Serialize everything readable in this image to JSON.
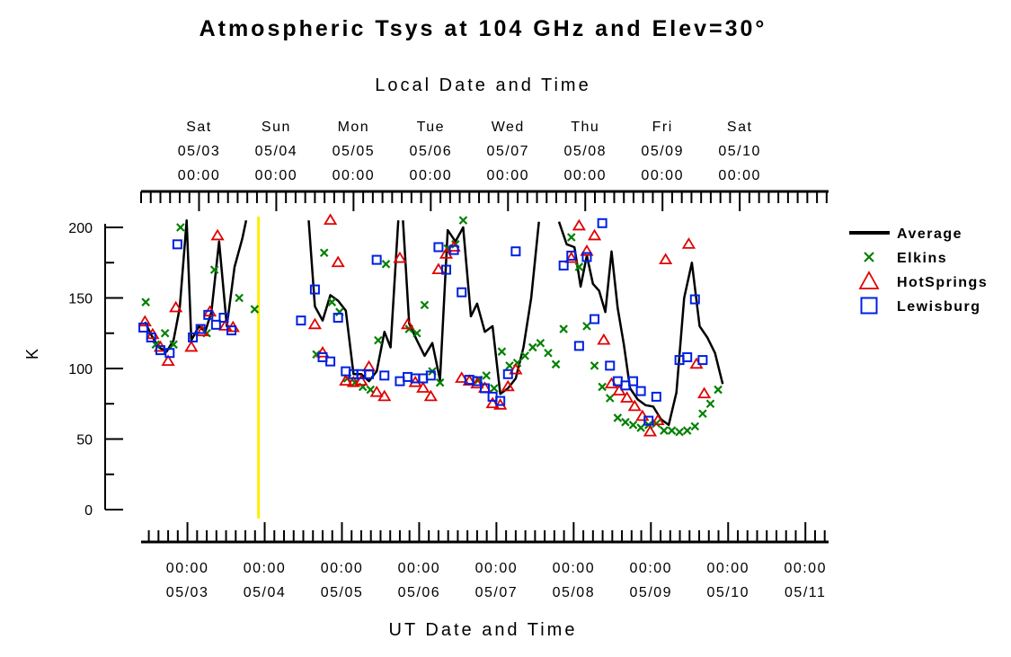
{
  "chart_data": {
    "type": "scatter",
    "title": "Atmospheric Tsys at 104 GHz and Elev=30°",
    "xlabel_top": "Local Date and Time",
    "xlabel_bottom": "UT Date and Time",
    "ylabel": "K",
    "ylim": [
      0,
      200
    ],
    "yticks": [
      0,
      50,
      100,
      150,
      200
    ],
    "xlim": [
      -0.75,
      8.15
    ],
    "top_axis_ticks": [
      {
        "x": 0.0,
        "l1": "Sat",
        "l2": "05/03",
        "l3": "00:00"
      },
      {
        "x": 1.0,
        "l1": "Sun",
        "l2": "05/04",
        "l3": "00:00"
      },
      {
        "x": 2.0,
        "l1": "Mon",
        "l2": "05/05",
        "l3": "00:00"
      },
      {
        "x": 3.0,
        "l1": "Tue",
        "l2": "05/06",
        "l3": "00:00"
      },
      {
        "x": 4.0,
        "l1": "Wed",
        "l2": "05/07",
        "l3": "00:00"
      },
      {
        "x": 5.0,
        "l1": "Thu",
        "l2": "05/08",
        "l3": "00:00"
      },
      {
        "x": 6.0,
        "l1": "Fri",
        "l2": "05/09",
        "l3": "00:00"
      },
      {
        "x": 7.0,
        "l1": "Sat",
        "l2": "05/10",
        "l3": "00:00"
      }
    ],
    "bottom_axis_ticks": [
      {
        "x": -0.15,
        "l1": "00:00",
        "l2": "05/03"
      },
      {
        "x": 0.85,
        "l1": "00:00",
        "l2": "05/04"
      },
      {
        "x": 1.85,
        "l1": "00:00",
        "l2": "05/05"
      },
      {
        "x": 2.85,
        "l1": "00:00",
        "l2": "05/06"
      },
      {
        "x": 3.85,
        "l1": "00:00",
        "l2": "05/07"
      },
      {
        "x": 4.85,
        "l1": "00:00",
        "l2": "05/08"
      },
      {
        "x": 5.85,
        "l1": "00:00",
        "l2": "05/09"
      },
      {
        "x": 6.85,
        "l1": "00:00",
        "l2": "05/10"
      },
      {
        "x": 7.85,
        "l1": "00:00",
        "l2": "05/11"
      }
    ],
    "marker_line": {
      "x": 0.77,
      "color": "#ffee00"
    },
    "legend_position": "right",
    "series": [
      {
        "name": "Average",
        "style": "line",
        "color": "#000000",
        "segments": [
          [
            [
              -0.7,
              133
            ],
            [
              -0.61,
              123
            ],
            [
              -0.52,
              115
            ],
            [
              -0.42,
              112
            ],
            [
              -0.33,
              120
            ],
            [
              -0.25,
              143
            ],
            [
              -0.16,
              205
            ],
            [
              -0.1,
              120
            ],
            [
              0.0,
              130
            ],
            [
              0.08,
              126
            ],
            [
              0.16,
              140
            ],
            [
              0.26,
              190
            ],
            [
              0.36,
              130
            ],
            [
              0.46,
              172
            ],
            [
              0.56,
              192
            ],
            [
              0.61,
              205
            ]
          ],
          [
            [
              1.42,
              205
            ],
            [
              1.5,
              144
            ],
            [
              1.6,
              134
            ],
            [
              1.7,
              152
            ],
            [
              1.8,
              148
            ],
            [
              1.9,
              141
            ],
            [
              2.0,
              96
            ],
            [
              2.1,
              96
            ],
            [
              2.2,
              91
            ],
            [
              2.3,
              98
            ],
            [
              2.4,
              126
            ],
            [
              2.48,
              115
            ],
            [
              2.58,
              205
            ]
          ],
          [
            [
              2.64,
              205
            ],
            [
              2.72,
              132
            ],
            [
              2.82,
              120
            ],
            [
              2.92,
              109
            ],
            [
              3.02,
              118
            ],
            [
              3.12,
              92
            ],
            [
              3.22,
              198
            ],
            [
              3.32,
              190
            ],
            [
              3.42,
              200
            ],
            [
              3.52,
              137
            ],
            [
              3.6,
              146
            ],
            [
              3.7,
              126
            ],
            [
              3.8,
              130
            ],
            [
              3.9,
              82
            ],
            [
              4.0,
              86
            ],
            [
              4.1,
              93
            ],
            [
              4.2,
              115
            ],
            [
              4.3,
              150
            ],
            [
              4.4,
              204
            ]
          ],
          [
            [
              4.66,
              204
            ],
            [
              4.76,
              188
            ],
            [
              4.86,
              186
            ],
            [
              4.94,
              158
            ],
            [
              5.02,
              180
            ],
            [
              5.1,
              160
            ],
            [
              5.18,
              155
            ],
            [
              5.26,
              140
            ],
            [
              5.34,
              183
            ],
            [
              5.42,
              143
            ],
            [
              5.5,
              117
            ],
            [
              5.58,
              86
            ],
            [
              5.68,
              78
            ],
            [
              5.78,
              74
            ],
            [
              5.88,
              73
            ],
            [
              5.98,
              64
            ],
            [
              6.08,
              60
            ],
            [
              6.18,
              83
            ],
            [
              6.28,
              150
            ],
            [
              6.38,
              175
            ],
            [
              6.48,
              130
            ],
            [
              6.58,
              122
            ],
            [
              6.68,
              111
            ],
            [
              6.78,
              89
            ]
          ]
        ]
      },
      {
        "name": "Elkins",
        "style": "x",
        "color": "#008000",
        "points": [
          [
            -0.69,
            147
          ],
          [
            -0.56,
            117
          ],
          [
            -0.44,
            125
          ],
          [
            -0.33,
            117
          ],
          [
            -0.24,
            200
          ],
          [
            0.1,
            125
          ],
          [
            0.2,
            170
          ],
          [
            0.52,
            150
          ],
          [
            0.72,
            142
          ],
          [
            1.52,
            110
          ],
          [
            1.62,
            182
          ],
          [
            1.72,
            147
          ],
          [
            1.82,
            140
          ],
          [
            1.92,
            93
          ],
          [
            2.02,
            90
          ],
          [
            2.12,
            87
          ],
          [
            2.22,
            85
          ],
          [
            2.32,
            120
          ],
          [
            2.42,
            174
          ],
          [
            2.72,
            128
          ],
          [
            2.82,
            125
          ],
          [
            2.92,
            145
          ],
          [
            3.02,
            98
          ],
          [
            3.12,
            90
          ],
          [
            3.22,
            185
          ],
          [
            3.32,
            188
          ],
          [
            3.42,
            205
          ],
          [
            3.62,
            92
          ],
          [
            3.72,
            95
          ],
          [
            3.82,
            86
          ],
          [
            3.92,
            112
          ],
          [
            4.02,
            102
          ],
          [
            4.12,
            104
          ],
          [
            4.22,
            109
          ],
          [
            4.32,
            115
          ],
          [
            4.42,
            118
          ],
          [
            4.52,
            111
          ],
          [
            4.62,
            103
          ],
          [
            4.72,
            128
          ],
          [
            4.82,
            193
          ],
          [
            4.92,
            172
          ],
          [
            5.02,
            130
          ],
          [
            5.12,
            102
          ],
          [
            5.22,
            87
          ],
          [
            5.32,
            79
          ],
          [
            5.42,
            65
          ],
          [
            5.52,
            62
          ],
          [
            5.62,
            60
          ],
          [
            5.72,
            58
          ],
          [
            5.82,
            60
          ],
          [
            5.92,
            61
          ],
          [
            6.02,
            56
          ],
          [
            6.12,
            56
          ],
          [
            6.22,
            55
          ],
          [
            6.32,
            56
          ],
          [
            6.42,
            59
          ],
          [
            6.52,
            68
          ],
          [
            6.62,
            75
          ],
          [
            6.72,
            85
          ]
        ]
      },
      {
        "name": "HotSprings",
        "style": "triangle",
        "color": "#e00000",
        "points": [
          [
            -0.7,
            133
          ],
          [
            -0.6,
            124
          ],
          [
            -0.5,
            115
          ],
          [
            -0.4,
            105
          ],
          [
            -0.3,
            143
          ],
          [
            -0.1,
            115
          ],
          [
            0.04,
            126
          ],
          [
            0.14,
            140
          ],
          [
            0.24,
            194
          ],
          [
            0.34,
            130
          ],
          [
            0.44,
            129
          ],
          [
            1.5,
            131
          ],
          [
            1.6,
            111
          ],
          [
            1.7,
            205
          ],
          [
            1.8,
            175
          ],
          [
            1.9,
            91
          ],
          [
            2.0,
            90
          ],
          [
            2.1,
            91
          ],
          [
            2.2,
            101
          ],
          [
            2.3,
            83
          ],
          [
            2.4,
            80
          ],
          [
            2.6,
            178
          ],
          [
            2.7,
            131
          ],
          [
            2.8,
            90
          ],
          [
            2.9,
            86
          ],
          [
            3.0,
            80
          ],
          [
            3.1,
            170
          ],
          [
            3.2,
            181
          ],
          [
            3.3,
            186
          ],
          [
            3.4,
            93
          ],
          [
            3.5,
            91
          ],
          [
            3.6,
            89
          ],
          [
            3.7,
            86
          ],
          [
            3.8,
            75
          ],
          [
            3.9,
            74
          ],
          [
            4.0,
            87
          ],
          [
            4.1,
            99
          ],
          [
            4.82,
            178
          ],
          [
            4.92,
            201
          ],
          [
            5.02,
            183
          ],
          [
            5.12,
            194
          ],
          [
            5.24,
            120
          ],
          [
            5.34,
            89
          ],
          [
            5.44,
            84
          ],
          [
            5.54,
            79
          ],
          [
            5.64,
            73
          ],
          [
            5.74,
            66
          ],
          [
            5.84,
            55
          ],
          [
            5.94,
            63
          ],
          [
            6.04,
            177
          ],
          [
            6.34,
            188
          ],
          [
            6.44,
            103
          ],
          [
            6.54,
            82
          ]
        ]
      },
      {
        "name": "Lewisburg",
        "style": "square",
        "color": "#0020e0",
        "points": [
          [
            -0.72,
            129
          ],
          [
            -0.62,
            122
          ],
          [
            -0.5,
            113
          ],
          [
            -0.38,
            111
          ],
          [
            -0.28,
            188
          ],
          [
            -0.08,
            122
          ],
          [
            0.02,
            128
          ],
          [
            0.12,
            138
          ],
          [
            0.22,
            131
          ],
          [
            0.32,
            136
          ],
          [
            0.42,
            127
          ],
          [
            1.32,
            134
          ],
          [
            1.5,
            156
          ],
          [
            1.6,
            108
          ],
          [
            1.7,
            105
          ],
          [
            1.8,
            136
          ],
          [
            1.9,
            98
          ],
          [
            2.0,
            96
          ],
          [
            2.1,
            96
          ],
          [
            2.2,
            96
          ],
          [
            2.3,
            177
          ],
          [
            2.4,
            95
          ],
          [
            2.6,
            91
          ],
          [
            2.7,
            94
          ],
          [
            2.8,
            93
          ],
          [
            2.9,
            93
          ],
          [
            3.0,
            95
          ],
          [
            3.1,
            186
          ],
          [
            3.2,
            170
          ],
          [
            3.3,
            184
          ],
          [
            3.4,
            154
          ],
          [
            3.5,
            92
          ],
          [
            3.6,
            91
          ],
          [
            3.7,
            86
          ],
          [
            3.8,
            80
          ],
          [
            3.9,
            77
          ],
          [
            4.0,
            96
          ],
          [
            4.1,
            183
          ],
          [
            4.72,
            173
          ],
          [
            4.82,
            180
          ],
          [
            4.92,
            116
          ],
          [
            5.02,
            179
          ],
          [
            5.12,
            135
          ],
          [
            5.22,
            203
          ],
          [
            5.32,
            102
          ],
          [
            5.42,
            91
          ],
          [
            5.52,
            88
          ],
          [
            5.62,
            91
          ],
          [
            5.72,
            84
          ],
          [
            5.82,
            63
          ],
          [
            5.92,
            80
          ],
          [
            6.22,
            106
          ],
          [
            6.32,
            108
          ],
          [
            6.42,
            149
          ],
          [
            6.52,
            106
          ]
        ]
      }
    ]
  }
}
